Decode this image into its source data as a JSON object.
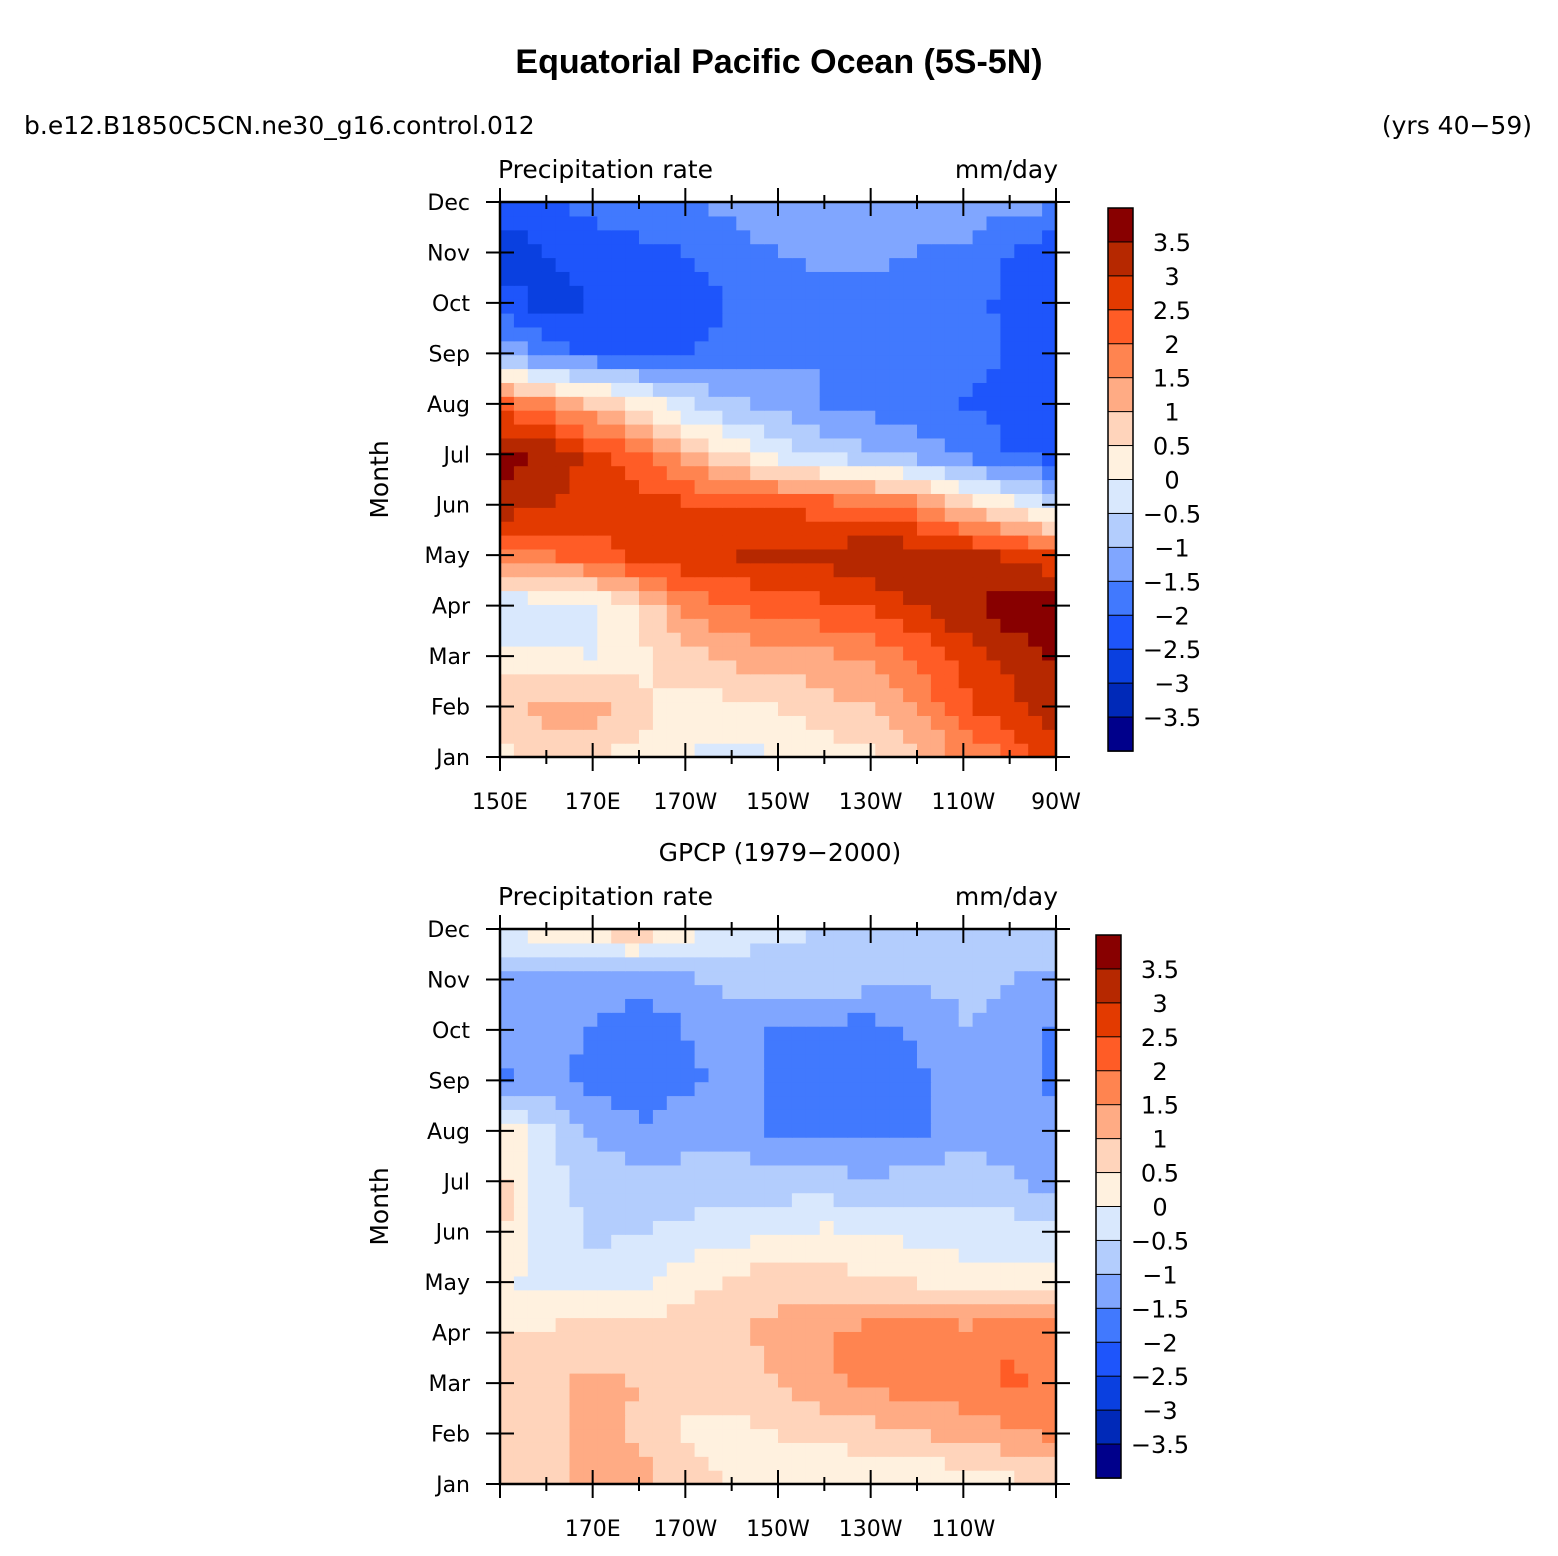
{
  "title": "Equatorial Pacific Ocean (5S-5N)",
  "case_name": "b.e12.B1850C5CN.ne30_g16.control.012",
  "years_label": "(yrs 40−59)",
  "chart_data": [
    {
      "type": "heatmap",
      "panel_title": "",
      "left_label": "Precipitation rate",
      "right_label": "mm/day",
      "ylabel": "Month",
      "xlabel": "",
      "x_ticks": [
        "150E",
        "170E",
        "170W",
        "150W",
        "130W",
        "110W",
        "90W"
      ],
      "y_ticks": [
        "Jan",
        "Feb",
        "Mar",
        "Apr",
        "May",
        "Jun",
        "Jul",
        "Aug",
        "Sep",
        "Oct",
        "Nov",
        "Dec"
      ],
      "colorbar_labels": [
        "3.5",
        "3",
        "2.5",
        "2",
        "1.5",
        "1",
        "0.5",
        "0",
        "−0.5",
        "−1",
        "−1.5",
        "−2",
        "−2.5",
        "−3",
        "−3.5"
      ],
      "levels": [
        -3.5,
        -3,
        -2.5,
        -2,
        -1.5,
        -1,
        -0.5,
        0,
        0.5,
        1,
        1.5,
        2,
        2.5,
        3,
        3.5
      ],
      "colors": [
        "#00008b",
        "#0029b8",
        "#0a40e0",
        "#1e55fb",
        "#4179fe",
        "#80a6ff",
        "#b3cdfd",
        "#d9e8fd",
        "#fff1df",
        "#ffd4bb",
        "#ffab84",
        "#ff8450",
        "#ff5c26",
        "#e33a00",
        "#b62800",
        "#880000"
      ],
      "x_lons": [
        150,
        160,
        170,
        180,
        190,
        200,
        210,
        220,
        230,
        240,
        250,
        260,
        270
      ],
      "values": [
        [
          0.3,
          0.6,
          0.5,
          0.3,
          0.0,
          -0.2,
          0.0,
          0.2,
          0.4,
          0.8,
          1.6,
          2.0,
          2.9
        ],
        [
          0.8,
          1.2,
          1.3,
          0.7,
          0.2,
          0.3,
          0.5,
          0.8,
          1.0,
          1.6,
          2.4,
          2.8,
          3.3
        ],
        [
          0.2,
          0.1,
          0.0,
          0.3,
          0.8,
          1.2,
          1.2,
          1.4,
          1.6,
          2.1,
          2.7,
          3.2,
          3.6
        ],
        [
          -0.6,
          -0.3,
          -0.2,
          0.6,
          1.6,
          2.0,
          2.2,
          2.4,
          2.6,
          3.0,
          3.4,
          3.8,
          3.9
        ],
        [
          2.0,
          2.0,
          2.2,
          2.7,
          2.9,
          3.0,
          3.1,
          3.2,
          3.4,
          3.4,
          3.2,
          2.9,
          2.5
        ],
        [
          3.3,
          3.0,
          2.9,
          2.7,
          2.6,
          2.5,
          2.4,
          2.3,
          2.1,
          1.8,
          0.8,
          0.2,
          -0.5
        ],
        [
          3.8,
          3.4,
          2.8,
          2.2,
          1.2,
          0.5,
          -0.2,
          -0.6,
          -0.9,
          -1.2,
          -1.6,
          -2.0,
          -2.2
        ],
        [
          2.2,
          1.6,
          1.0,
          0.4,
          -0.4,
          -0.9,
          -1.2,
          -1.5,
          -1.7,
          -1.9,
          -2.0,
          -2.2,
          -2.3
        ],
        [
          -1.0,
          -1.8,
          -2.0,
          -2.0,
          -2.0,
          -1.8,
          -1.6,
          -1.5,
          -1.5,
          -1.6,
          -1.8,
          -2.0,
          -2.3
        ],
        [
          -2.2,
          -2.7,
          -2.5,
          -2.3,
          -2.2,
          -2.0,
          -1.8,
          -1.6,
          -1.6,
          -1.7,
          -1.9,
          -2.1,
          -2.3
        ],
        [
          -2.8,
          -2.5,
          -2.3,
          -2.2,
          -2.0,
          -1.7,
          -1.5,
          -1.4,
          -1.4,
          -1.5,
          -1.6,
          -2.0,
          -2.4
        ],
        [
          -2.2,
          -2.2,
          -1.8,
          -1.6,
          -1.5,
          -1.4,
          -1.2,
          -1.1,
          -1.1,
          -1.2,
          -1.2,
          -1.3,
          -1.4
        ]
      ]
    },
    {
      "type": "heatmap",
      "panel_title": "GPCP (1979−2000)",
      "left_label": "Precipitation rate",
      "right_label": "mm/day",
      "ylabel": "Month",
      "xlabel": "",
      "x_ticks": [
        "170E",
        "170W",
        "150W",
        "130W",
        "110W"
      ],
      "y_ticks": [
        "Jan",
        "Feb",
        "Mar",
        "Apr",
        "May",
        "Jun",
        "Jul",
        "Aug",
        "Sep",
        "Oct",
        "Nov",
        "Dec"
      ],
      "colorbar_labels": [
        "3.5",
        "3",
        "2.5",
        "2",
        "1.5",
        "1",
        "0.5",
        "0",
        "−0.5",
        "−1",
        "−1.5",
        "−2",
        "−2.5",
        "−3",
        "−3.5"
      ],
      "levels": [
        -3.5,
        -3,
        -2.5,
        -2,
        -1.5,
        -1,
        -0.5,
        0,
        0.5,
        1,
        1.5,
        2,
        2.5,
        3,
        3.5
      ],
      "colors": [
        "#00008b",
        "#0029b8",
        "#0a40e0",
        "#1e55fb",
        "#4179fe",
        "#80a6ff",
        "#b3cdfd",
        "#d9e8fd",
        "#fff1df",
        "#ffd4bb",
        "#ffab84",
        "#ff8450",
        "#ff5c26",
        "#e33a00",
        "#b62800",
        "#880000"
      ],
      "x_lons": [
        150,
        160,
        170,
        180,
        190,
        200,
        210,
        220,
        230,
        240,
        250,
        260,
        270
      ],
      "values": [
        [
          0.5,
          0.7,
          1.4,
          1.2,
          0.8,
          0.4,
          0.2,
          0.1,
          0.0,
          0.0,
          0.1,
          0.3,
          0.5
        ],
        [
          0.6,
          0.8,
          1.2,
          0.9,
          0.4,
          0.3,
          0.5,
          0.6,
          0.8,
          1.0,
          1.2,
          1.4,
          1.6
        ],
        [
          0.7,
          0.9,
          1.1,
          1.0,
          0.6,
          0.7,
          1.0,
          1.4,
          1.6,
          1.9,
          1.8,
          2.1,
          1.9
        ],
        [
          0.5,
          0.6,
          0.8,
          0.7,
          0.8,
          0.9,
          1.2,
          1.5,
          1.7,
          2.0,
          1.7,
          1.9,
          1.8
        ],
        [
          0.1,
          -0.2,
          -0.3,
          -0.2,
          0.3,
          0.6,
          0.8,
          0.7,
          0.6,
          0.5,
          0.3,
          0.3,
          0.2
        ],
        [
          0.6,
          -0.2,
          -0.6,
          -0.5,
          -0.4,
          -0.2,
          0.0,
          0.1,
          0.0,
          -0.2,
          -0.3,
          -0.3,
          -0.4
        ],
        [
          0.7,
          -0.3,
          -0.7,
          -0.8,
          -0.8,
          -0.7,
          -0.8,
          -0.8,
          -0.9,
          -0.7,
          -0.7,
          -0.8,
          -1.4
        ],
        [
          0.4,
          -0.4,
          -1.1,
          -1.4,
          -1.2,
          -1.1,
          -1.6,
          -1.7,
          -1.7,
          -1.6,
          -1.2,
          -1.4,
          -1.3
        ],
        [
          -1.6,
          -1.4,
          -1.6,
          -1.9,
          -1.6,
          -1.4,
          -1.6,
          -1.7,
          -1.7,
          -1.6,
          -1.1,
          -1.3,
          -1.6
        ],
        [
          -1.4,
          -1.2,
          -1.6,
          -2.0,
          -1.5,
          -1.2,
          -1.6,
          -1.7,
          -1.7,
          -1.4,
          -1.0,
          -1.1,
          -1.6
        ],
        [
          -1.3,
          -1.1,
          -1.1,
          -1.2,
          -1.1,
          -0.9,
          -0.8,
          -0.7,
          -0.8,
          -0.9,
          -0.9,
          -1.0,
          -1.1
        ],
        [
          0.1,
          0.3,
          0.7,
          0.9,
          0.3,
          -0.1,
          -0.4,
          -0.5,
          -0.6,
          -0.6,
          -0.7,
          -0.8,
          -0.8
        ]
      ]
    }
  ]
}
